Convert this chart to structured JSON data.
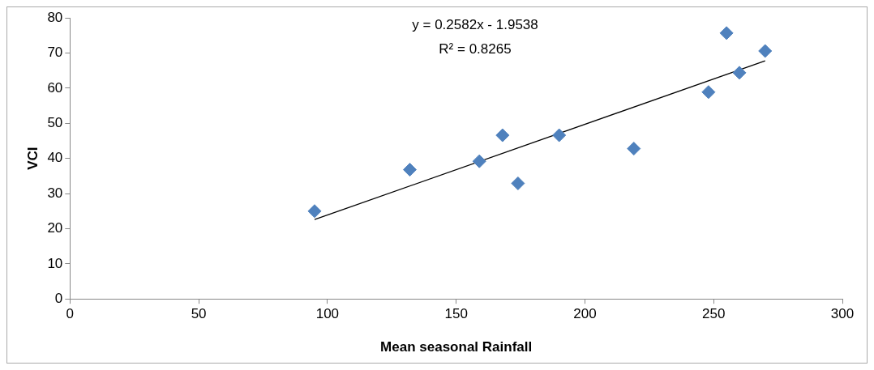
{
  "chart_data": {
    "type": "scatter",
    "xlabel": "Mean seasonal Rainfall",
    "ylabel": "VCI",
    "annotations": [
      "y = 0.2582x - 1.9538",
      "R² = 0.8265"
    ],
    "series": [
      {
        "type": "scatter",
        "marker": "diamond",
        "color": "#4f81bd",
        "x": [
          95,
          132,
          159,
          168,
          174,
          190,
          219,
          248,
          255,
          260,
          270
        ],
        "values": [
          25,
          36.8,
          39.2,
          46.6,
          32.9,
          46.6,
          42.8,
          58.9,
          75.7,
          64.4,
          70.6
        ]
      },
      {
        "type": "line",
        "color": "#000000",
        "x": [
          95,
          270
        ],
        "values": [
          22.6,
          67.8
        ]
      }
    ],
    "xlim": [
      0,
      300
    ],
    "xticks": [
      0,
      50,
      100,
      150,
      200,
      250,
      300
    ],
    "ylim": [
      0,
      80
    ],
    "yticks": [
      0,
      10,
      20,
      30,
      40,
      50,
      60,
      70,
      80
    ],
    "grid": false,
    "legend": false
  }
}
